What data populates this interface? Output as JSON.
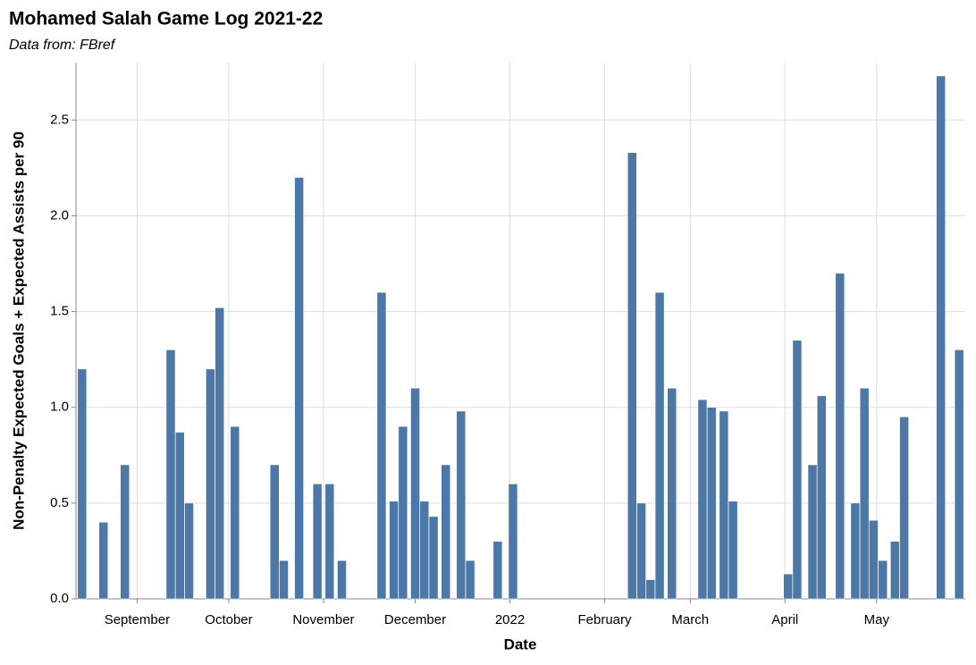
{
  "chart_data": {
    "type": "bar",
    "title": "Mohamed Salah Game Log 2021-22",
    "subtitle": "Data from: FBref",
    "x_label": "Date",
    "y_label": "Non-Penalty Expected Goals + Expected Assists per 90",
    "color": "#4c78a8",
    "grid": true,
    "x": [
      "2021-08-14",
      "2021-08-21",
      "2021-08-28",
      "2021-09-12",
      "2021-09-15",
      "2021-09-18",
      "2021-09-25",
      "2021-09-28",
      "2021-10-03",
      "2021-10-16",
      "2021-10-19",
      "2021-10-24",
      "2021-10-30",
      "2021-11-03",
      "2021-11-07",
      "2021-11-20",
      "2021-11-24",
      "2021-11-27",
      "2021-12-01",
      "2021-12-04",
      "2021-12-07",
      "2021-12-11",
      "2021-12-16",
      "2021-12-19",
      "2021-12-28",
      "2022-01-02",
      "2022-02-10",
      "2022-02-13",
      "2022-02-16",
      "2022-02-19",
      "2022-02-23",
      "2022-03-05",
      "2022-03-08",
      "2022-03-12",
      "2022-03-15",
      "2022-04-02",
      "2022-04-05",
      "2022-04-10",
      "2022-04-13",
      "2022-04-19",
      "2022-04-24",
      "2022-04-27",
      "2022-04-30",
      "2022-05-03",
      "2022-05-07",
      "2022-05-10",
      "2022-05-22",
      "2022-05-28"
    ],
    "values": [
      1.2,
      0.4,
      0.7,
      1.3,
      0.87,
      0.5,
      1.2,
      1.52,
      0.9,
      0.7,
      0.2,
      2.2,
      0.6,
      0.6,
      0.2,
      1.6,
      0.51,
      0.9,
      1.1,
      0.51,
      0.43,
      0.7,
      0.98,
      0.2,
      0.3,
      0.6,
      2.33,
      0.5,
      0.1,
      1.6,
      1.1,
      1.04,
      1.0,
      0.98,
      0.51,
      0.13,
      1.35,
      0.7,
      1.06,
      1.7,
      0.5,
      1.1,
      0.41,
      0.2,
      0.3,
      0.95,
      2.73,
      1.3
    ],
    "xlim": [
      "2021-08-12",
      "2022-05-30"
    ],
    "xticks": [
      {
        "value": "2021-09-01",
        "label": "September"
      },
      {
        "value": "2021-10-01",
        "label": "October"
      },
      {
        "value": "2021-11-01",
        "label": "November"
      },
      {
        "value": "2021-12-01",
        "label": "December"
      },
      {
        "value": "2022-01-01",
        "label": "2022"
      },
      {
        "value": "2022-02-01",
        "label": "February"
      },
      {
        "value": "2022-03-01",
        "label": "March"
      },
      {
        "value": "2022-04-01",
        "label": "April"
      },
      {
        "value": "2022-05-01",
        "label": "May"
      }
    ],
    "ylim": [
      0,
      2.8
    ],
    "yticks": [
      {
        "value": 0,
        "label": "0.0"
      },
      0.5,
      {
        "value": 1,
        "label": "1.0"
      },
      1.5,
      {
        "value": 2,
        "label": "2.0"
      },
      2.5
    ]
  }
}
